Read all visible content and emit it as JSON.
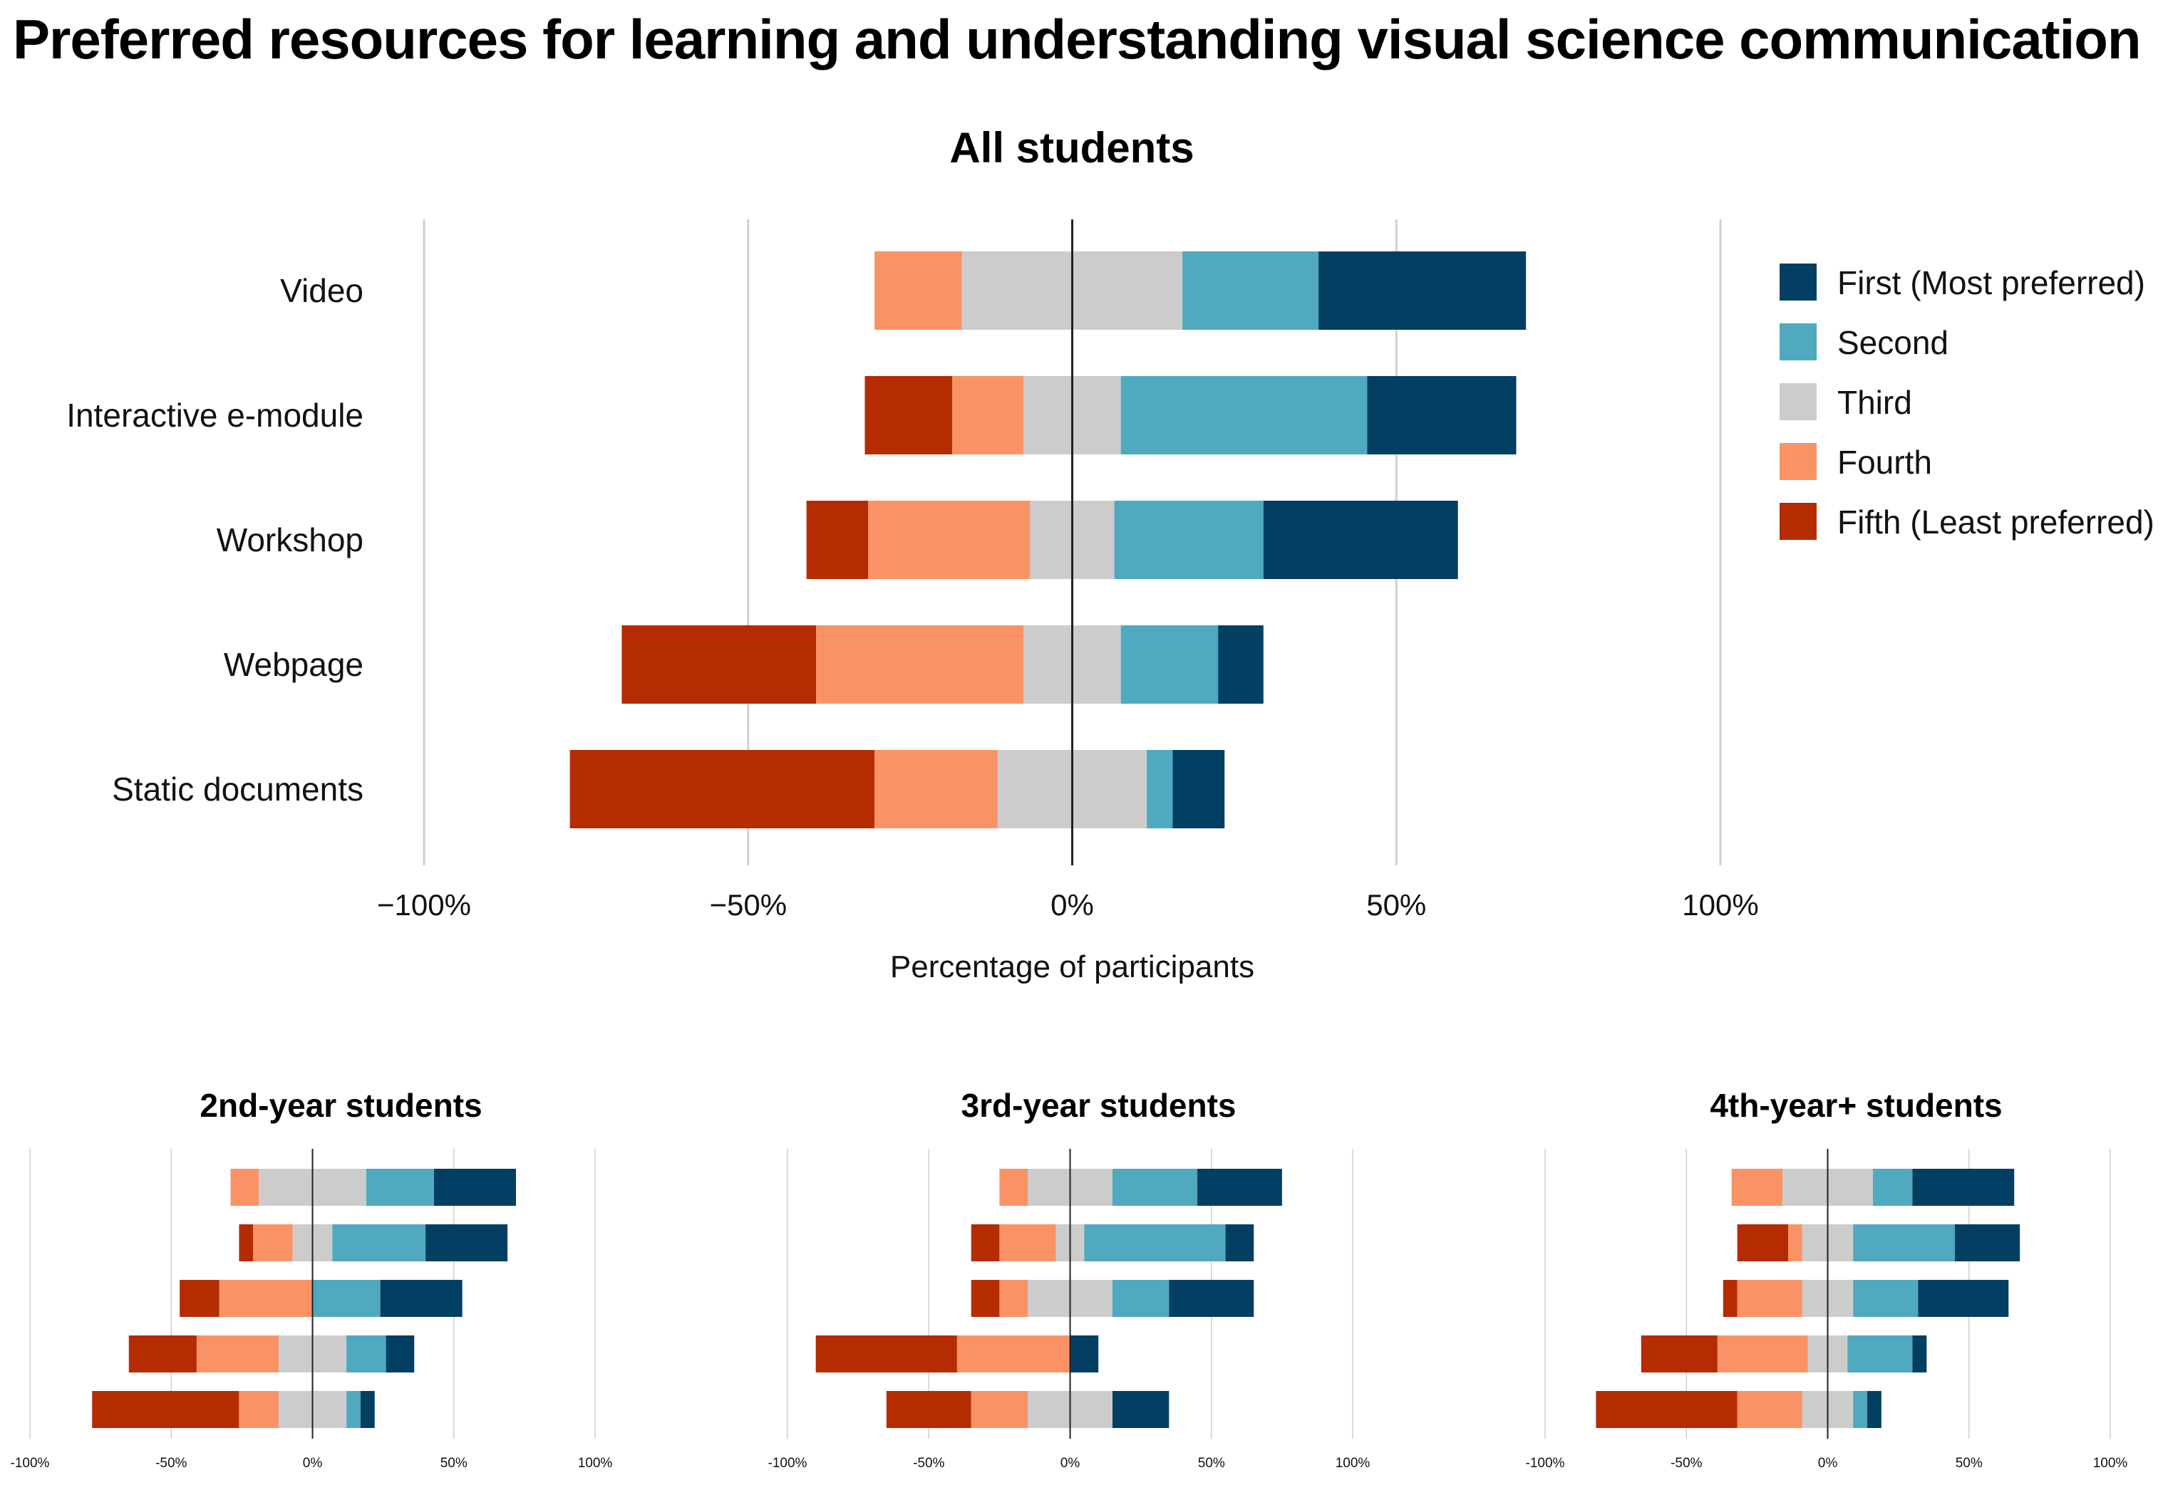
{
  "title": "Preferred resources for learning and understanding visual science communication",
  "colors": {
    "first": "#033f63",
    "second": "#4fa9bf",
    "third": "#cccccc",
    "fourth": "#f99366",
    "fifth": "#b52c02"
  },
  "chart_data": [
    {
      "type": "bar",
      "subtype": "diverging-stacked-horizontal",
      "title": "All students",
      "xlabel": "Percentage of participants",
      "xlim": [
        -100,
        100
      ],
      "xticks": [
        -100,
        -50,
        0,
        50,
        100
      ],
      "xtick_labels": [
        "−100%",
        "−50%",
        "0%",
        "50%",
        "100%"
      ],
      "legend_position": "right",
      "legend": [
        "First (Most preferred)",
        "Second",
        "Third",
        "Fourth",
        "Fifth (Least preferred)"
      ],
      "categories": [
        "Video",
        "Interactive e-module",
        "Workshop",
        "Webpage",
        "Static documents"
      ],
      "series": [
        {
          "name": "Fifth (Least preferred)",
          "values": [
            0,
            13.5,
            9.5,
            30,
            47
          ]
        },
        {
          "name": "Fourth",
          "values": [
            13.5,
            11,
            25,
            32,
            19
          ]
        },
        {
          "name": "Third",
          "values": [
            34,
            15,
            13,
            15,
            23
          ]
        },
        {
          "name": "Second",
          "values": [
            21,
            38,
            23,
            15,
            4
          ]
        },
        {
          "name": "First (Most preferred)",
          "values": [
            32,
            23,
            30,
            7,
            8
          ]
        }
      ]
    },
    {
      "type": "bar",
      "subtype": "diverging-stacked-horizontal",
      "title": "2nd-year students",
      "xlim": [
        -100,
        100
      ],
      "xticks": [
        -100,
        -50,
        0,
        50,
        100
      ],
      "xtick_labels": [
        "-100%",
        "-50%",
        "0%",
        "50%",
        "100%"
      ],
      "categories": [
        "Video",
        "Interactive e-module",
        "Workshop",
        "Webpage",
        "Static documents"
      ],
      "series": [
        {
          "name": "Fifth (Least preferred)",
          "values": [
            0,
            5,
            14,
            24,
            52
          ]
        },
        {
          "name": "Fourth",
          "values": [
            10,
            14,
            33,
            29,
            14
          ]
        },
        {
          "name": "Third",
          "values": [
            38,
            14,
            0,
            24,
            24
          ]
        },
        {
          "name": "Second",
          "values": [
            24,
            33,
            24,
            14,
            5
          ]
        },
        {
          "name": "First (Most preferred)",
          "values": [
            29,
            29,
            29,
            10,
            5
          ]
        }
      ]
    },
    {
      "type": "bar",
      "subtype": "diverging-stacked-horizontal",
      "title": "3rd-year students",
      "xlim": [
        -100,
        100
      ],
      "xticks": [
        -100,
        -50,
        0,
        50,
        100
      ],
      "xtick_labels": [
        "-100%",
        "-50%",
        "0%",
        "50%",
        "100%"
      ],
      "categories": [
        "Video",
        "Interactive e-module",
        "Workshop",
        "Webpage",
        "Static documents"
      ],
      "series": [
        {
          "name": "Fifth (Least preferred)",
          "values": [
            0,
            10,
            10,
            50,
            30
          ]
        },
        {
          "name": "Fourth",
          "values": [
            10,
            20,
            10,
            40,
            20
          ]
        },
        {
          "name": "Third",
          "values": [
            30,
            10,
            30,
            0,
            30
          ]
        },
        {
          "name": "Second",
          "values": [
            30,
            50,
            20,
            0,
            0
          ]
        },
        {
          "name": "First (Most preferred)",
          "values": [
            30,
            10,
            30,
            10,
            20
          ]
        }
      ]
    },
    {
      "type": "bar",
      "subtype": "diverging-stacked-horizontal",
      "title": "4th-year+ students",
      "xlim": [
        -100,
        100
      ],
      "xticks": [
        -100,
        -50,
        0,
        50,
        100
      ],
      "xtick_labels": [
        "-100%",
        "-50%",
        "0%",
        "50%",
        "100%"
      ],
      "categories": [
        "Video",
        "Interactive e-module",
        "Workshop",
        "Webpage",
        "Static documents"
      ],
      "series": [
        {
          "name": "Fifth (Least preferred)",
          "values": [
            0,
            18,
            5,
            27,
            50
          ]
        },
        {
          "name": "Fourth",
          "values": [
            18,
            5,
            23,
            32,
            23
          ]
        },
        {
          "name": "Third",
          "values": [
            32,
            18,
            18,
            14,
            18
          ]
        },
        {
          "name": "Second",
          "values": [
            14,
            36,
            23,
            23,
            5
          ]
        },
        {
          "name": "First (Most preferred)",
          "values": [
            36,
            23,
            32,
            5,
            5
          ]
        }
      ]
    }
  ]
}
